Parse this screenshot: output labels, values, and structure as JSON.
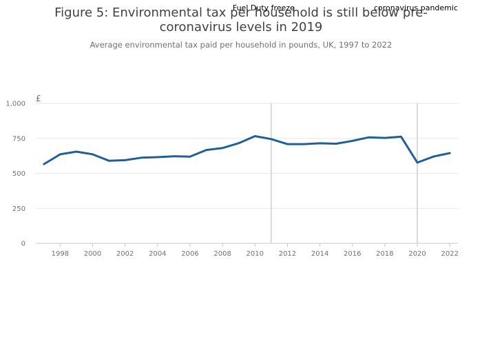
{
  "chart_data": {
    "type": "line",
    "title_lines": [
      "Figure 5: Environmental tax per household is still below pre-",
      "coronavirus levels in 2019"
    ],
    "subtitle": "Average environmental tax paid per household in pounds, UK, 1997 to 2022",
    "ylabel": "£",
    "xlabel": "",
    "xlim": [
      1996.5,
      2022.5
    ],
    "ylim": [
      0,
      1000
    ],
    "y_ticks": [
      0,
      250,
      500,
      750,
      1000
    ],
    "y_tick_labels": [
      "0",
      "250",
      "500",
      "750",
      "1,000"
    ],
    "x_ticks": [
      1998,
      2000,
      2002,
      2004,
      2006,
      2008,
      2010,
      2012,
      2014,
      2016,
      2018,
      2020,
      2022
    ],
    "x_tick_labels": [
      "1998",
      "2000",
      "2002",
      "2004",
      "2006",
      "2008",
      "2010",
      "2012",
      "2014",
      "2016",
      "2018",
      "2020",
      "2022"
    ],
    "grid": true,
    "series": [
      {
        "name": "Average environmental tax per household",
        "color": "#206095",
        "x": [
          1997,
          1998,
          1999,
          2000,
          2001,
          2002,
          2003,
          2004,
          2005,
          2006,
          2007,
          2008,
          2009,
          2010,
          2011,
          2012,
          2013,
          2014,
          2015,
          2016,
          2017,
          2018,
          2019,
          2020,
          2021,
          2022
        ],
        "values": [
          566,
          636,
          655,
          636,
          590,
          594,
          612,
          616,
          622,
          619,
          667,
          681,
          716,
          766,
          745,
          709,
          709,
          715,
          712,
          732,
          757,
          753,
          762,
          577,
          620,
          645
        ]
      }
    ],
    "annotations": [
      {
        "x": 2011,
        "text": "Fuel Duty freeze"
      },
      {
        "x": 2020,
        "text": "coronavirus pandemic"
      }
    ]
  }
}
